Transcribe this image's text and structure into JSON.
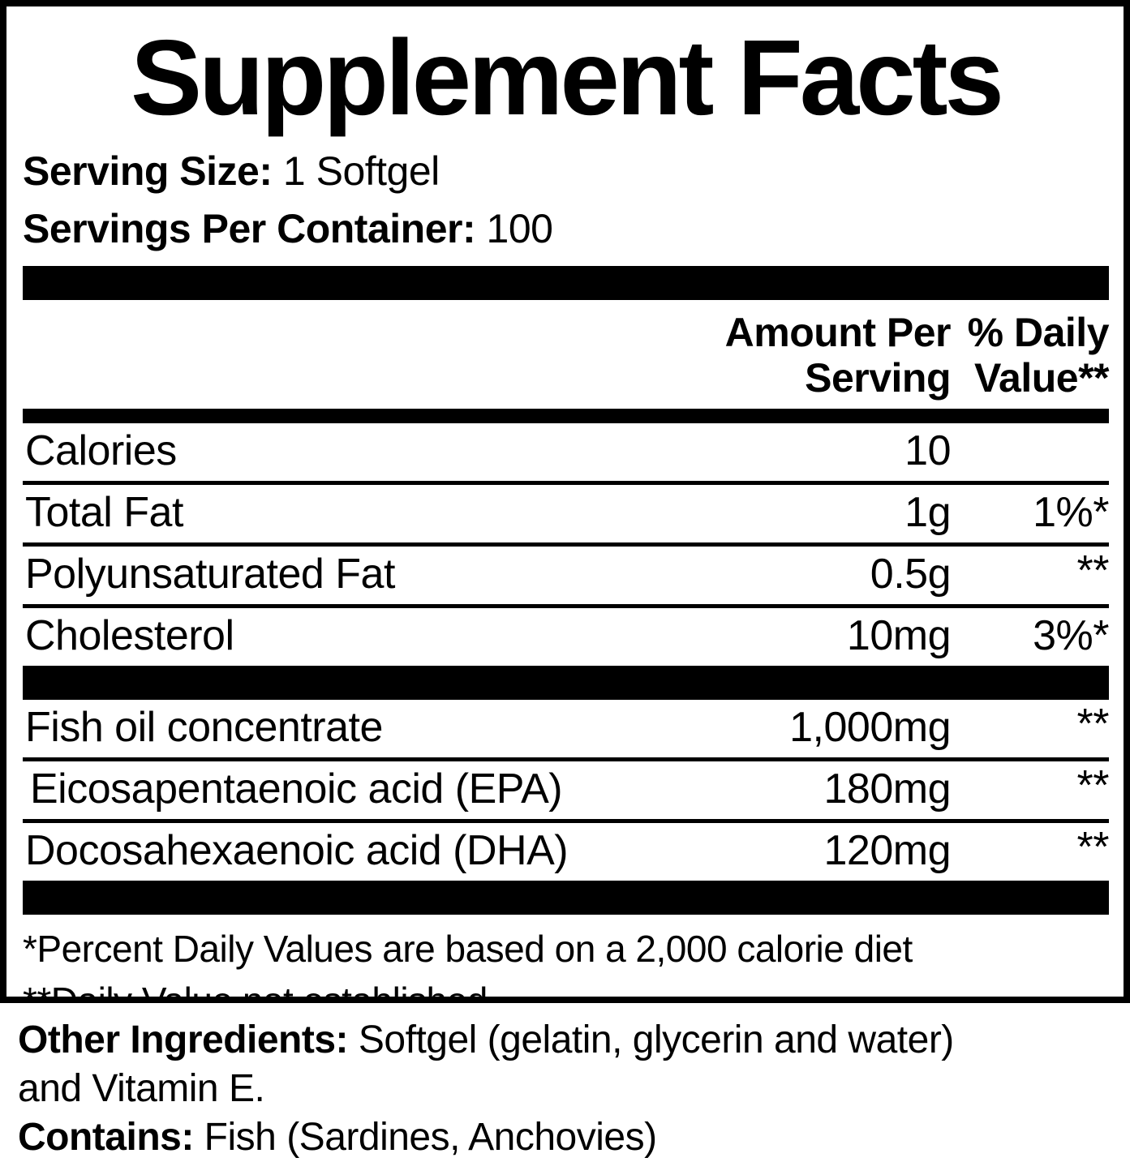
{
  "title": "Supplement Facts",
  "serving": {
    "size_label": "Serving Size:",
    "size_value": "1 Softgel",
    "per_container_label": "Servings Per Container:",
    "per_container_value": "100"
  },
  "header": {
    "amount_line1": "Amount Per",
    "amount_line2": "Serving",
    "daily_line1": "% Daily",
    "daily_line2": "Value**"
  },
  "nutrients": [
    {
      "name": "Calories",
      "amount": "10",
      "dv": ""
    },
    {
      "name": "Total Fat",
      "amount": "1g",
      "dv": "1%*"
    },
    {
      "name": "Polyunsaturated Fat",
      "amount": "0.5g",
      "dv": "**"
    },
    {
      "name": "Cholesterol",
      "amount": "10mg",
      "dv": "3%*"
    }
  ],
  "supplement_rows": [
    {
      "name": "Fish oil concentrate",
      "amount": "1,000mg",
      "dv": "**"
    },
    {
      "name": "Eicosapentaenoic acid (EPA)",
      "amount": "180mg",
      "dv": "**"
    },
    {
      "name": "Docosahexaenoic acid (DHA)",
      "amount": "120mg",
      "dv": "**"
    }
  ],
  "footnotes": {
    "line1": "*Percent Daily Values are based on a 2,000 calorie diet",
    "line2": "**Daily Value not established."
  },
  "other": {
    "ingredients_label": "Other Ingredients:",
    "ingredients_value": "Softgel (gelatin, glycerin and water)",
    "ingredients_value_cont": "and Vitamin E.",
    "contains_label": "Contains:",
    "contains_value": "Fish (Sardines, Anchovies)"
  },
  "colors": {
    "ink": "#000000",
    "paper": "#ffffff"
  }
}
